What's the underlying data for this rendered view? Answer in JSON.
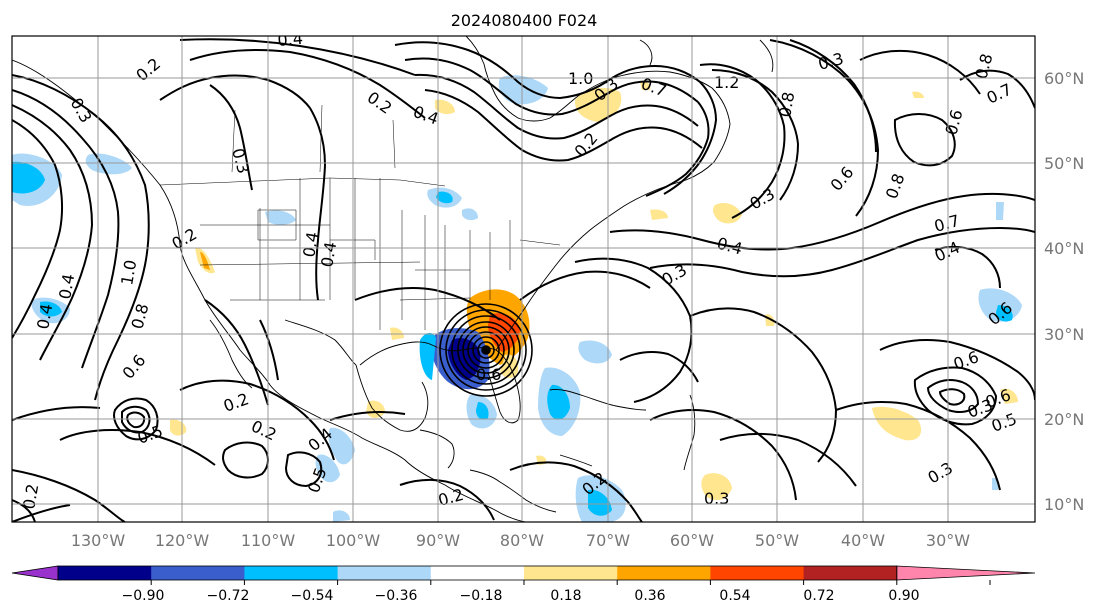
{
  "title": "2024080400 F024",
  "map": {
    "lon_labels": [
      "130°W",
      "120°W",
      "110°W",
      "100°W",
      "90°W",
      "80°W",
      "70°W",
      "60°W",
      "50°W",
      "40°W",
      "30°W"
    ],
    "lat_labels": [
      "60°N",
      "50°N",
      "40°N",
      "30°N",
      "20°N",
      "10°N"
    ],
    "contour_labels": [
      "0.4",
      "0.2",
      "0.3",
      "0.2",
      "1.0",
      "0.7",
      "1.2",
      "0.3",
      "0.8",
      "0.7",
      "0.6",
      "0.2",
      "0.3",
      "0.4",
      "0.3",
      "0.3",
      "0.4",
      "0.8",
      "0.6",
      "0.8",
      "0.7",
      "0.4",
      "0.3",
      "0.6",
      "1.0",
      "0.2",
      "0.8",
      "0.4",
      "0.4",
      "0.6",
      "0.6",
      "0.4",
      "0.4",
      "0.2",
      "0.2",
      "0.6",
      "0.5",
      "0.4",
      "0.6",
      "0.3",
      "0.5",
      "0.3",
      "0.2",
      "0.2",
      "0.3",
      "0.2",
      "0.5"
    ]
  },
  "colorbar": {
    "ticks": [
      "−0.90",
      "−0.72",
      "−0.54",
      "−0.36",
      "−0.18",
      "0.18",
      "0.36",
      "0.54",
      "0.72",
      "0.90"
    ],
    "colors": [
      "#9932cc",
      "#00008b",
      "#3a5fcd",
      "#00bfff",
      "#add8f8",
      "#ffffff",
      "#ffe68f",
      "#ffa500",
      "#ff4500",
      "#b22222",
      "#ff85ad"
    ],
    "under_color": "#9932cc",
    "over_color": "#ff85ad"
  }
}
